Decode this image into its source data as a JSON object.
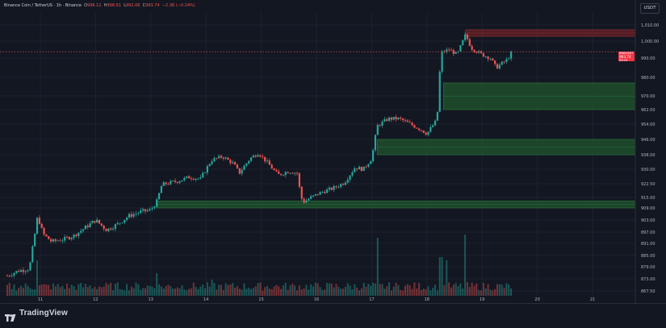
{
  "header": {
    "symbol_title": "Binance Coin / TetherUS · 1h · Binance",
    "ohlc": {
      "o_label": "O",
      "o_value": "996.11",
      "h_label": "H",
      "h_value": "998.61",
      "l_label": "L",
      "l_value": "992.06",
      "c_label": "C",
      "c_value": "993.74",
      "change": "−2.36 (−0.24%)"
    },
    "currency_button": "USDT"
  },
  "price_tag": {
    "symbol": "BNBUSDT",
    "value": "993.74",
    "countdown": "03:19"
  },
  "footer": {
    "brand": "TradingView"
  },
  "colors": {
    "background": "#131722",
    "up": "#26a69a",
    "down": "#ef5350",
    "zone_demand": "#1e4d2b",
    "zone_supply": "#5c1f24",
    "grid": "#1e222d",
    "axis_text": "#b2b5be"
  },
  "chart_data": {
    "type": "candlestick",
    "y_axis_ticks": [
      "1,010.00",
      "1,000.00",
      "990.00",
      "980.00",
      "970.00",
      "962.00",
      "954.00",
      "946.00",
      "938.00",
      "930.00",
      "922.50",
      "915.00",
      "909.00",
      "903.00",
      "897.00",
      "891.00",
      "885.00",
      "879.00",
      "873.00",
      "867.50"
    ],
    "x_axis_ticks": [
      "11",
      "12",
      "13",
      "14",
      "15",
      "16",
      "17",
      "18",
      "19",
      "20",
      "21"
    ],
    "last_price": 993.74,
    "zones": [
      {
        "kind": "supply",
        "from": 1003,
        "to": 1007,
        "start_day": 18.7
      },
      {
        "kind": "demand",
        "from": 962,
        "to": 977,
        "start_day": 18.3
      },
      {
        "kind": "demand",
        "from": 938,
        "to": 946,
        "start_day": 17.1
      },
      {
        "kind": "demand",
        "from": 909,
        "to": 913,
        "start_day": 13.1
      }
    ],
    "price_path": [
      [
        10.4,
        874.5
      ],
      [
        10.6,
        877
      ],
      [
        10.8,
        878
      ],
      [
        10.95,
        905
      ],
      [
        11.05,
        896
      ],
      [
        11.2,
        892
      ],
      [
        11.4,
        893
      ],
      [
        11.6,
        895
      ],
      [
        11.8,
        899
      ],
      [
        12.0,
        903
      ],
      [
        12.2,
        898
      ],
      [
        12.4,
        901
      ],
      [
        12.6,
        905
      ],
      [
        12.8,
        907
      ],
      [
        13.0,
        908
      ],
      [
        13.1,
        912
      ],
      [
        13.2,
        922
      ],
      [
        13.5,
        924
      ],
      [
        13.7,
        926
      ],
      [
        13.9,
        925
      ],
      [
        14.1,
        935
      ],
      [
        14.3,
        937
      ],
      [
        14.5,
        933
      ],
      [
        14.6,
        928
      ],
      [
        14.8,
        936
      ],
      [
        14.95,
        939
      ],
      [
        15.1,
        934
      ],
      [
        15.3,
        927
      ],
      [
        15.5,
        929
      ],
      [
        15.65,
        928
      ],
      [
        15.7,
        919
      ],
      [
        15.75,
        912
      ],
      [
        15.9,
        915
      ],
      [
        16.1,
        918
      ],
      [
        16.3,
        920
      ],
      [
        16.5,
        923
      ],
      [
        16.7,
        931
      ],
      [
        16.85,
        930
      ],
      [
        17.0,
        936
      ],
      [
        17.1,
        953
      ],
      [
        17.3,
        957
      ],
      [
        17.5,
        957
      ],
      [
        17.7,
        954
      ],
      [
        17.9,
        951
      ],
      [
        18.0,
        949
      ],
      [
        18.15,
        955
      ],
      [
        18.2,
        962
      ],
      [
        18.25,
        993
      ],
      [
        18.4,
        995
      ],
      [
        18.55,
        992
      ],
      [
        18.7,
        1004
      ],
      [
        18.8,
        996
      ],
      [
        18.9,
        994
      ],
      [
        19.0,
        992
      ],
      [
        19.15,
        990
      ],
      [
        19.25,
        985
      ],
      [
        19.35,
        987
      ],
      [
        19.45,
        989
      ],
      [
        19.55,
        993.74
      ]
    ],
    "volume": {
      "axis_visible": false,
      "spikes": [
        [
          10.95,
          0.55
        ],
        [
          13.1,
          0.35
        ],
        [
          14.1,
          0.25
        ],
        [
          17.1,
          0.9
        ],
        [
          18.25,
          0.6
        ],
        [
          18.7,
          0.95
        ],
        [
          18.35,
          0.55
        ],
        [
          16.85,
          0.2
        ]
      ]
    }
  }
}
